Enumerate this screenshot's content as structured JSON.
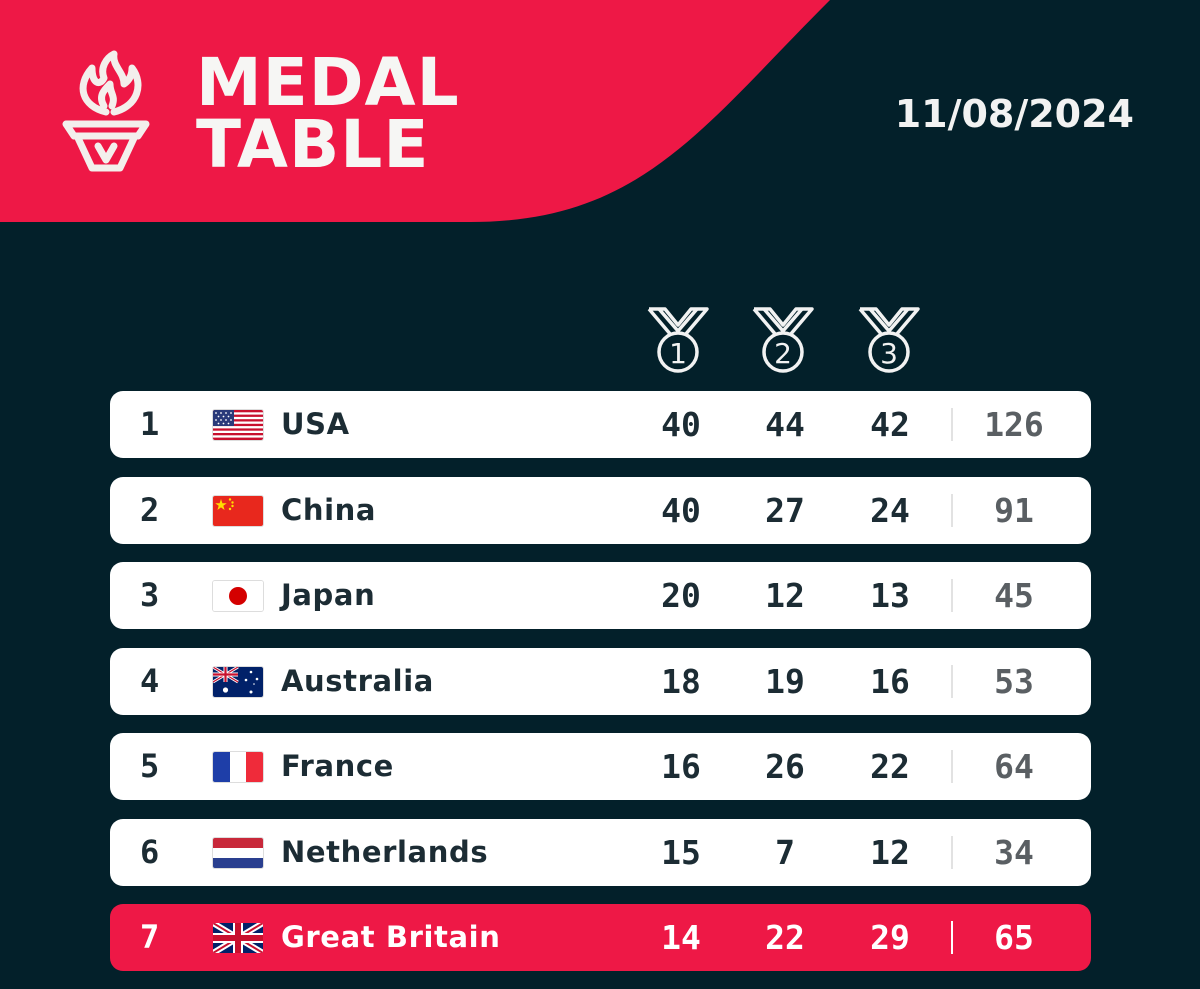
{
  "header": {
    "title_line1": "MEDAL",
    "title_line2": "TABLE",
    "date": "11/08/2024",
    "icon": "torch-icon"
  },
  "columns": [
    {
      "icon": "medal-1-icon",
      "number": "1"
    },
    {
      "icon": "medal-2-icon",
      "number": "2"
    },
    {
      "icon": "medal-3-icon",
      "number": "3"
    }
  ],
  "colors": {
    "accent": "#ee1846",
    "background": "#03202a",
    "row": "#ffffff",
    "text": "#1c2c34",
    "total_text": "#5a5f63"
  },
  "rows": [
    {
      "rank": "1",
      "country": "USA",
      "flag": "usa-flag-icon",
      "gold": "40",
      "silver": "44",
      "bronze": "42",
      "total": "126"
    },
    {
      "rank": "2",
      "country": "China",
      "flag": "china-flag-icon",
      "gold": "40",
      "silver": "27",
      "bronze": "24",
      "total": "91"
    },
    {
      "rank": "3",
      "country": "Japan",
      "flag": "japan-flag-icon",
      "gold": "20",
      "silver": "12",
      "bronze": "13",
      "total": "45"
    },
    {
      "rank": "4",
      "country": "Australia",
      "flag": "australia-flag-icon",
      "gold": "18",
      "silver": "19",
      "bronze": "16",
      "total": "53"
    },
    {
      "rank": "5",
      "country": "France",
      "flag": "france-flag-icon",
      "gold": "16",
      "silver": "26",
      "bronze": "22",
      "total": "64"
    },
    {
      "rank": "6",
      "country": "Netherlands",
      "flag": "netherlands-flag-icon",
      "gold": "15",
      "silver": "7",
      "bronze": "12",
      "total": "34"
    },
    {
      "rank": "7",
      "country": "Great Britain",
      "flag": "great-britain-flag-icon",
      "gold": "14",
      "silver": "22",
      "bronze": "29",
      "total": "65",
      "highlighted": true
    }
  ]
}
